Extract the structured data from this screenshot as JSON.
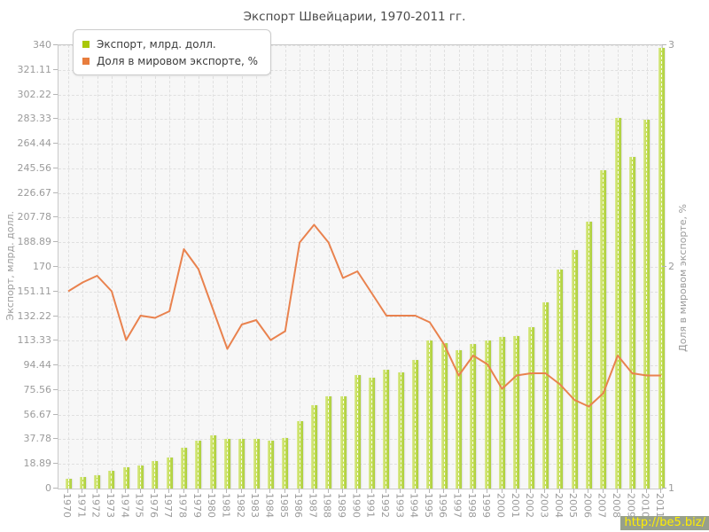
{
  "title": "Экспорт Швейцарии, 1970-2011 гг.",
  "legend": {
    "items": [
      {
        "label": "Экспорт, млрд. долл.",
        "color": "#a9c808"
      },
      {
        "label": "Доля в мировом экспорте, %",
        "color": "#e87d3d"
      }
    ]
  },
  "watermark": {
    "text": "http://be5.biz/"
  },
  "colors": {
    "bar_fill": "#c0dc52",
    "line": "#e9824e",
    "plot_background": "#f7f7f7",
    "grid": "#e0e0e0",
    "axis_text": "#9b9b9b",
    "watermark_bg": "#97a08b",
    "watermark_text": "#ffee00"
  },
  "chart_data": {
    "type": "bar",
    "title": "Экспорт Швейцарии, 1970-2011 гг.",
    "categories": [
      "1970",
      "1971",
      "1972",
      "1973",
      "1974",
      "1975",
      "1976",
      "1977",
      "1978",
      "1979",
      "1980",
      "1981",
      "1982",
      "1983",
      "1984",
      "1985",
      "1986",
      "1987",
      "1988",
      "1989",
      "1990",
      "1991",
      "1992",
      "1993",
      "1994",
      "1995",
      "1996",
      "1997",
      "1998",
      "1999",
      "2000",
      "2001",
      "2002",
      "2003",
      "2004",
      "2005",
      "2006",
      "2007",
      "2008",
      "2009",
      "2010",
      "2011"
    ],
    "series": [
      {
        "name": "Экспорт, млрд. долл.",
        "type": "bar",
        "axis": "left",
        "values": [
          7.5,
          9,
          10.5,
          13.5,
          16,
          18,
          21,
          24,
          31.5,
          36.5,
          40.5,
          38,
          38,
          38,
          37,
          38.5,
          52,
          64,
          71,
          71,
          87,
          85,
          91,
          89,
          98.5,
          113.5,
          111.5,
          106,
          111,
          113.5,
          116.5,
          117,
          124,
          143,
          168,
          183,
          205,
          244,
          284,
          254,
          283,
          338
        ]
      },
      {
        "name": "Доля в мировом экспорте, %",
        "type": "line",
        "axis": "right",
        "values": [
          1.89,
          1.93,
          1.96,
          1.89,
          1.67,
          1.78,
          1.77,
          1.8,
          2.08,
          1.99,
          1.81,
          1.63,
          1.74,
          1.76,
          1.67,
          1.71,
          2.11,
          2.19,
          2.11,
          1.95,
          1.98,
          1.88,
          1.78,
          1.78,
          1.78,
          1.75,
          1.65,
          1.51,
          1.6,
          1.56,
          1.45,
          1.51,
          1.52,
          1.52,
          1.47,
          1.4,
          1.37,
          1.43,
          1.6,
          1.52,
          1.51,
          1.51
        ]
      }
    ],
    "left_axis": {
      "label": "Экспорт, млрд. долл.",
      "min": 0,
      "max": 340,
      "tick_labels": [
        "0",
        "18.89",
        "37.78",
        "56.67",
        "75.56",
        "94.44",
        "113.33",
        "132.22",
        "151.11",
        "170",
        "188.89",
        "207.78",
        "226.67",
        "245.56",
        "264.44",
        "283.33",
        "302.22",
        "321.11",
        "340"
      ]
    },
    "right_axis": {
      "label": "Доля в мировом экспорте, %",
      "min": 1,
      "max": 3,
      "tick_labels": [
        "1",
        "2",
        "3"
      ]
    },
    "grid": true,
    "legend_position": "top-left",
    "xlabel": "",
    "ylabel": "Экспорт, млрд. долл."
  }
}
